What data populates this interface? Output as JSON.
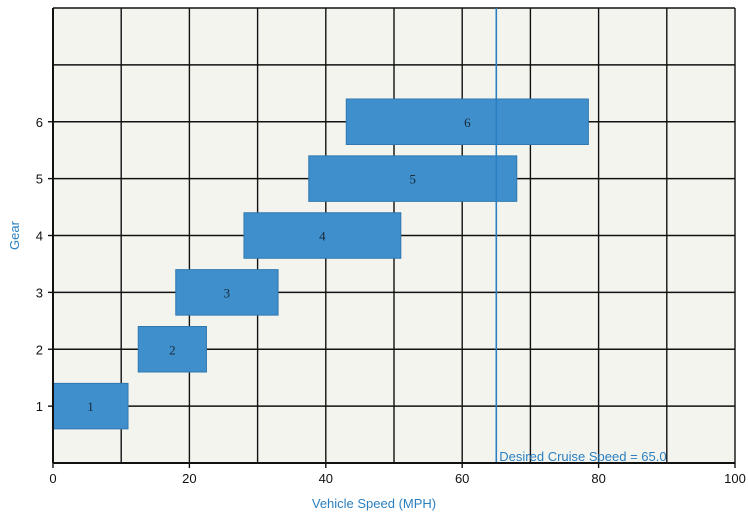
{
  "chart_data": {
    "type": "bar",
    "orientation": "horizontal-range",
    "xlabel": "Vehicle Speed (MPH)",
    "ylabel": "Gear",
    "xlim": [
      0,
      100
    ],
    "ylim": [
      0,
      8
    ],
    "xticks": [
      0,
      20,
      40,
      60,
      80,
      100
    ],
    "yticks": [
      1,
      2,
      3,
      4,
      5,
      6
    ],
    "grid": true,
    "bars": [
      {
        "gear": 1,
        "label": "1",
        "start": 0,
        "end": 11
      },
      {
        "gear": 2,
        "label": "2",
        "start": 12.5,
        "end": 22.5
      },
      {
        "gear": 3,
        "label": "3",
        "start": 18,
        "end": 33
      },
      {
        "gear": 4,
        "label": "4",
        "start": 28,
        "end": 51
      },
      {
        "gear": 5,
        "label": "5",
        "start": 37.5,
        "end": 68
      },
      {
        "gear": 6,
        "label": "6",
        "start": 43,
        "end": 78.5
      }
    ],
    "bar_color": "#3f8fcc",
    "reference_line": {
      "x": 65.0,
      "label": "Desired Cruise Speed = 65.0",
      "color": "#2a7fc0"
    }
  }
}
